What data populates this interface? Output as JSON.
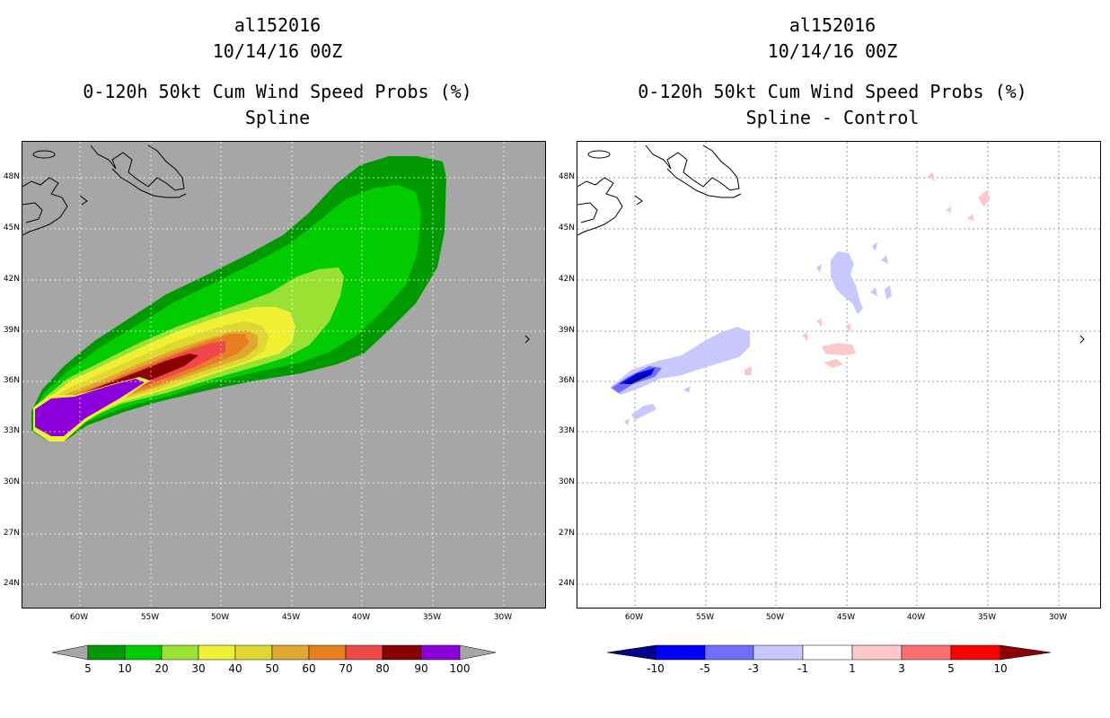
{
  "left_panel": {
    "title_line1": "al152016",
    "title_line2": "10/14/16 00Z",
    "title_line3": "0-120h 50kt Cum Wind Speed Probs (%)",
    "title_line4": "Spline",
    "background_color": "#a6a6a6",
    "colorbar": {
      "labels": [
        "5",
        "10",
        "20",
        "30",
        "40",
        "50",
        "60",
        "70",
        "80",
        "90",
        "100"
      ],
      "colors": [
        "#009a00",
        "#00cc00",
        "#99e233",
        "#f0f032",
        "#e0d830",
        "#e0a830",
        "#e88020",
        "#f04848",
        "#880000",
        "#8c00dc"
      ]
    }
  },
  "right_panel": {
    "title_line1": "al152016",
    "title_line2": "10/14/16 00Z",
    "title_line3": "0-120h 50kt Cum Wind Speed Probs (%)",
    "title_line4": "Spline - Control",
    "background_color": "#ffffff",
    "colorbar": {
      "labels": [
        "-10",
        "-5",
        "-3",
        "-1",
        "1",
        "3",
        "5",
        "10"
      ],
      "colors": [
        "#00008b",
        "#0000ff",
        "#6e6eff",
        "#c8c8ff",
        "#ffffff",
        "#ffc8c8",
        "#ff6e6e",
        "#ff0000",
        "#8b0000"
      ]
    }
  },
  "axes": {
    "lat_labels": [
      "48N",
      "45N",
      "42N",
      "39N",
      "36N",
      "33N",
      "30N",
      "27N",
      "24N"
    ],
    "lon_labels": [
      "60W",
      "55W",
      "50W",
      "45W",
      "40W",
      "35W",
      "30W"
    ]
  }
}
